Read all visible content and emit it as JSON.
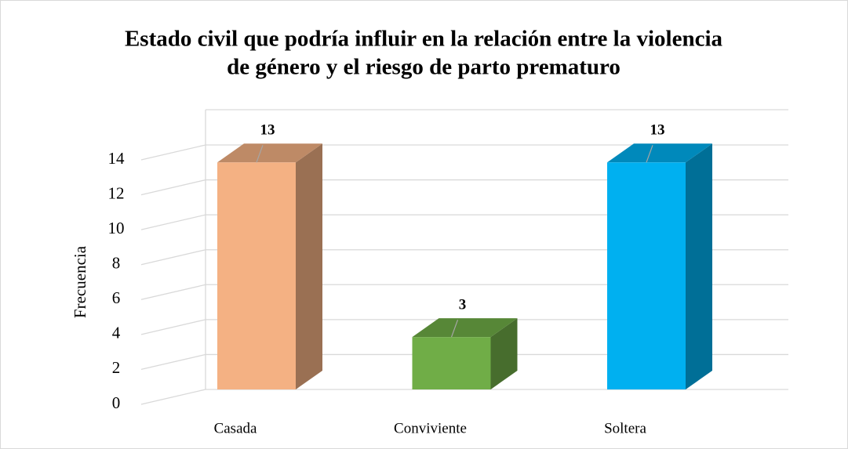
{
  "chart_data": {
    "type": "bar3d",
    "title": [
      "Estado civil que podría influir en la relación entre la violencia",
      "de género y el riesgo de parto prematuro"
    ],
    "ylabel": "Frecuencia",
    "categories": [
      "Casada",
      "Conviviente",
      "Soltera"
    ],
    "values": [
      13,
      3,
      13
    ],
    "colors": [
      "#f4b183",
      "#70ad47",
      "#00b0f0"
    ],
    "ylim": [
      0,
      14
    ],
    "yticks": [
      0,
      2,
      4,
      6,
      8,
      10,
      12,
      14
    ],
    "grid": true
  }
}
